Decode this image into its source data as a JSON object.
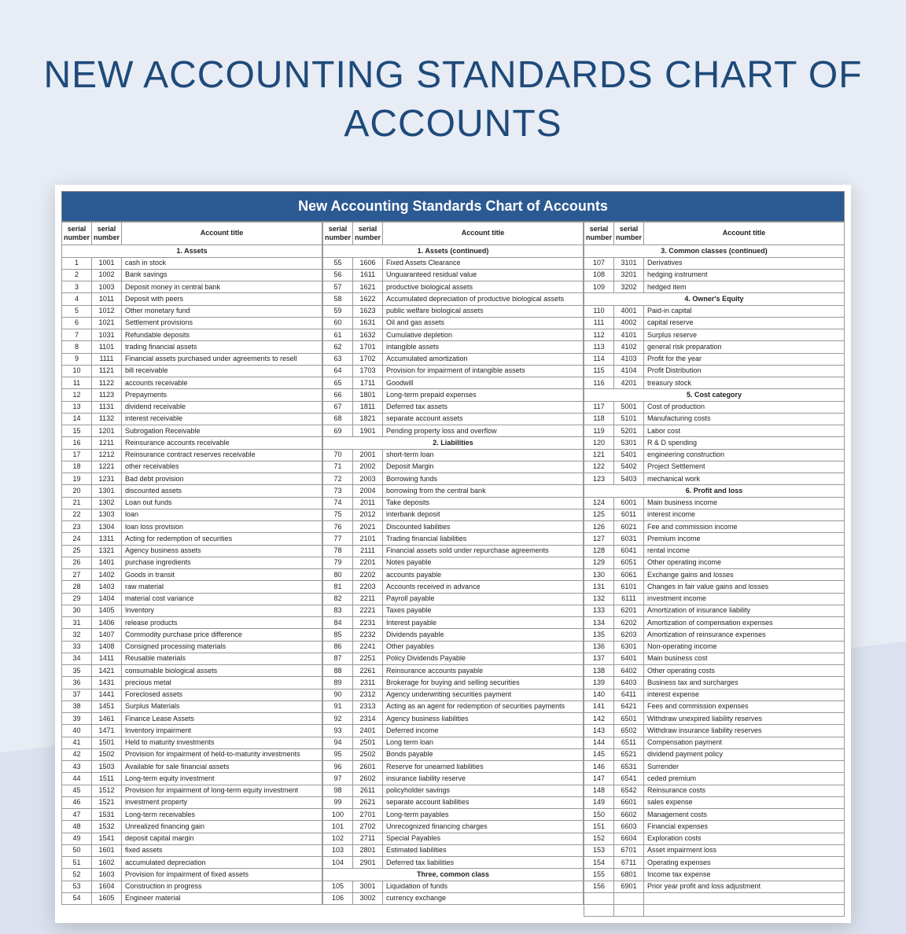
{
  "page_title": "NEW ACCOUNTING STANDARDS CHART OF ACCOUNTS",
  "sheet_title": "New Accounting Standards Chart of Accounts",
  "colors": {
    "title": "#1e4a7a",
    "header_bg": "#2b5a93",
    "header_text": "#ffffff",
    "border": "#999999",
    "page_bg_top": "#e8ecf5",
    "page_bg_bottom": "#dbe1ee"
  },
  "headers": [
    "serial number",
    "serial number",
    "Account title"
  ],
  "columns": [
    {
      "rows": [
        {
          "section": "1. Assets"
        },
        {
          "sn": 1,
          "num": 1001,
          "title": "cash in stock"
        },
        {
          "sn": 2,
          "num": 1002,
          "title": "Bank savings"
        },
        {
          "sn": 3,
          "num": 1003,
          "title": "Deposit money in central bank"
        },
        {
          "sn": 4,
          "num": 1011,
          "title": "Deposit with peers"
        },
        {
          "sn": 5,
          "num": 1012,
          "title": "Other monetary fund"
        },
        {
          "sn": 6,
          "num": 1021,
          "title": "Settlement provisions"
        },
        {
          "sn": 7,
          "num": 1031,
          "title": "Refundable deposits"
        },
        {
          "sn": 8,
          "num": 1101,
          "title": "trading financial assets"
        },
        {
          "sn": 9,
          "num": 1111,
          "title": "Financial assets purchased under agreements to resell"
        },
        {
          "sn": 10,
          "num": 1121,
          "title": "bill receivable"
        },
        {
          "sn": 11,
          "num": 1122,
          "title": "accounts receivable"
        },
        {
          "sn": 12,
          "num": 1123,
          "title": "Prepayments"
        },
        {
          "sn": 13,
          "num": 1131,
          "title": "dividend receivable"
        },
        {
          "sn": 14,
          "num": 1132,
          "title": "interest receivable"
        },
        {
          "sn": 15,
          "num": 1201,
          "title": "Subrogation Receivable"
        },
        {
          "sn": 16,
          "num": 1211,
          "title": "Reinsurance accounts receivable"
        },
        {
          "sn": 17,
          "num": 1212,
          "title": "Reinsurance contract reserves receivable"
        },
        {
          "sn": 18,
          "num": 1221,
          "title": "other receivables"
        },
        {
          "sn": 19,
          "num": 1231,
          "title": "Bad debt provision"
        },
        {
          "sn": 20,
          "num": 1301,
          "title": "discounted assets"
        },
        {
          "sn": 21,
          "num": 1302,
          "title": "Loan out funds"
        },
        {
          "sn": 22,
          "num": 1303,
          "title": "loan"
        },
        {
          "sn": 23,
          "num": 1304,
          "title": "loan loss provision"
        },
        {
          "sn": 24,
          "num": 1311,
          "title": "Acting for redemption of securities"
        },
        {
          "sn": 25,
          "num": 1321,
          "title": "Agency business assets"
        },
        {
          "sn": 26,
          "num": 1401,
          "title": "purchase ingredients"
        },
        {
          "sn": 27,
          "num": 1402,
          "title": "Goods in transit"
        },
        {
          "sn": 28,
          "num": 1403,
          "title": "raw material"
        },
        {
          "sn": 29,
          "num": 1404,
          "title": "material cost variance"
        },
        {
          "sn": 30,
          "num": 1405,
          "title": "Inventory"
        },
        {
          "sn": 31,
          "num": 1406,
          "title": "release products"
        },
        {
          "sn": 32,
          "num": 1407,
          "title": "Commodity purchase price difference"
        },
        {
          "sn": 33,
          "num": 1408,
          "title": "Consigned processing materials"
        },
        {
          "sn": 34,
          "num": 1411,
          "title": "Reusable materials"
        },
        {
          "sn": 35,
          "num": 1421,
          "title": "consumable biological assets"
        },
        {
          "sn": 36,
          "num": 1431,
          "title": "precious metal"
        },
        {
          "sn": 37,
          "num": 1441,
          "title": "Foreclosed assets"
        },
        {
          "sn": 38,
          "num": 1451,
          "title": "Surplus Materials"
        },
        {
          "sn": 39,
          "num": 1461,
          "title": "Finance Lease Assets"
        },
        {
          "sn": 40,
          "num": 1471,
          "title": "Inventory impairment"
        },
        {
          "sn": 41,
          "num": 1501,
          "title": "Held to maturity investments"
        },
        {
          "sn": 42,
          "num": 1502,
          "title": "Provision for impairment of held-to-maturity investments"
        },
        {
          "sn": 43,
          "num": 1503,
          "title": "Available for sale financial assets"
        },
        {
          "sn": 44,
          "num": 1511,
          "title": "Long-term equity investment"
        },
        {
          "sn": 45,
          "num": 1512,
          "title": "Provision for impairment of long-term equity investment"
        },
        {
          "sn": 46,
          "num": 1521,
          "title": "investment property"
        },
        {
          "sn": 47,
          "num": 1531,
          "title": "Long-term receivables"
        },
        {
          "sn": 48,
          "num": 1532,
          "title": "Unrealized financing gain"
        },
        {
          "sn": 49,
          "num": 1541,
          "title": "deposit capital margin"
        },
        {
          "sn": 50,
          "num": 1601,
          "title": "fixed assets"
        },
        {
          "sn": 51,
          "num": 1602,
          "title": "accumulated depreciation"
        },
        {
          "sn": 52,
          "num": 1603,
          "title": "Provision for impairment of fixed assets"
        },
        {
          "sn": 53,
          "num": 1604,
          "title": "Construction in progress"
        },
        {
          "sn": 54,
          "num": 1605,
          "title": "Engineer material"
        }
      ]
    },
    {
      "rows": [
        {
          "section": "1. Assets (continued)"
        },
        {
          "sn": 55,
          "num": 1606,
          "title": "Fixed Assets Clearance"
        },
        {
          "sn": 56,
          "num": 1611,
          "title": "Unguaranteed residual value"
        },
        {
          "sn": 57,
          "num": 1621,
          "title": "productive biological assets"
        },
        {
          "sn": 58,
          "num": 1622,
          "title": "Accumulated depreciation of productive biological assets"
        },
        {
          "sn": 59,
          "num": 1623,
          "title": "public welfare biological assets"
        },
        {
          "sn": 60,
          "num": 1631,
          "title": "Oil and gas assets"
        },
        {
          "sn": 61,
          "num": 1632,
          "title": "Cumulative depletion"
        },
        {
          "sn": 62,
          "num": 1701,
          "title": "intangible assets"
        },
        {
          "sn": 63,
          "num": 1702,
          "title": "Accumulated amortization"
        },
        {
          "sn": 64,
          "num": 1703,
          "title": "Provision for impairment of intangible assets"
        },
        {
          "sn": 65,
          "num": 1711,
          "title": "Goodwill"
        },
        {
          "sn": 66,
          "num": 1801,
          "title": "Long-term prepaid expenses"
        },
        {
          "sn": 67,
          "num": 1811,
          "title": "Deferred tax assets"
        },
        {
          "sn": 68,
          "num": 1821,
          "title": "separate account assets"
        },
        {
          "sn": 69,
          "num": 1901,
          "title": "Pending property loss and overflow"
        },
        {
          "section": "2. Liabilities"
        },
        {
          "sn": 70,
          "num": 2001,
          "title": "short-term loan"
        },
        {
          "sn": 71,
          "num": 2002,
          "title": "Deposit Margin"
        },
        {
          "sn": 72,
          "num": 2003,
          "title": "Borrowing funds"
        },
        {
          "sn": 73,
          "num": 2004,
          "title": "borrowing from the central bank"
        },
        {
          "sn": 74,
          "num": 2011,
          "title": "Take deposits"
        },
        {
          "sn": 75,
          "num": 2012,
          "title": "interbank deposit"
        },
        {
          "sn": 76,
          "num": 2021,
          "title": "Discounted liabilities"
        },
        {
          "sn": 77,
          "num": 2101,
          "title": "Trading financial liabilities"
        },
        {
          "sn": 78,
          "num": 2111,
          "title": "Financial assets sold under repurchase agreements"
        },
        {
          "sn": 79,
          "num": 2201,
          "title": "Notes payable"
        },
        {
          "sn": 80,
          "num": 2202,
          "title": "accounts payable"
        },
        {
          "sn": 81,
          "num": 2203,
          "title": "Accounts received in advance"
        },
        {
          "sn": 82,
          "num": 2211,
          "title": "Payroll payable"
        },
        {
          "sn": 83,
          "num": 2221,
          "title": "Taxes payable"
        },
        {
          "sn": 84,
          "num": 2231,
          "title": "Interest payable"
        },
        {
          "sn": 85,
          "num": 2232,
          "title": "Dividends payable"
        },
        {
          "sn": 86,
          "num": 2241,
          "title": "Other payables"
        },
        {
          "sn": 87,
          "num": 2251,
          "title": "Policy Dividends Payable"
        },
        {
          "sn": 88,
          "num": 2261,
          "title": "Reinsurance accounts payable"
        },
        {
          "sn": 89,
          "num": 2311,
          "title": "Brokerage for buying and selling securities"
        },
        {
          "sn": 90,
          "num": 2312,
          "title": "Agency underwriting securities payment"
        },
        {
          "sn": 91,
          "num": 2313,
          "title": "Acting as an agent for redemption of securities payments"
        },
        {
          "sn": 92,
          "num": 2314,
          "title": "Agency business liabilities"
        },
        {
          "sn": 93,
          "num": 2401,
          "title": "Deferred income"
        },
        {
          "sn": 94,
          "num": 2501,
          "title": "Long term loan"
        },
        {
          "sn": 95,
          "num": 2502,
          "title": "Bonds payable"
        },
        {
          "sn": 96,
          "num": 2601,
          "title": "Reserve for unearned liabilities"
        },
        {
          "sn": 97,
          "num": 2602,
          "title": "insurance liability reserve"
        },
        {
          "sn": 98,
          "num": 2611,
          "title": "policyholder savings"
        },
        {
          "sn": 99,
          "num": 2621,
          "title": "separate account liabilities"
        },
        {
          "sn": 100,
          "num": 2701,
          "title": "Long-term payables"
        },
        {
          "sn": 101,
          "num": 2702,
          "title": "Unrecognized financing charges"
        },
        {
          "sn": 102,
          "num": 2711,
          "title": "Special Payables"
        },
        {
          "sn": 103,
          "num": 2801,
          "title": "Estimated liabilities"
        },
        {
          "sn": 104,
          "num": 2901,
          "title": "Deferred tax liabilities"
        },
        {
          "section": "Three, common class"
        },
        {
          "sn": 105,
          "num": 3001,
          "title": "Liquidation of funds"
        },
        {
          "sn": 106,
          "num": 3002,
          "title": "currency exchange"
        }
      ]
    },
    {
      "rows": [
        {
          "section": "3. Common classes (continued)"
        },
        {
          "sn": 107,
          "num": 3101,
          "title": "Derivatives"
        },
        {
          "sn": 108,
          "num": 3201,
          "title": "hedging instrument"
        },
        {
          "sn": 109,
          "num": 3202,
          "title": "hedged item"
        },
        {
          "section": "4. Owner's Equity"
        },
        {
          "sn": 110,
          "num": 4001,
          "title": "Paid-in capital"
        },
        {
          "sn": 111,
          "num": 4002,
          "title": "capital reserve"
        },
        {
          "sn": 112,
          "num": 4101,
          "title": "Surplus reserve"
        },
        {
          "sn": 113,
          "num": 4102,
          "title": "general risk preparation"
        },
        {
          "sn": 114,
          "num": 4103,
          "title": "Profit for the year"
        },
        {
          "sn": 115,
          "num": 4104,
          "title": "Profit Distribution"
        },
        {
          "sn": 116,
          "num": 4201,
          "title": "treasury stock"
        },
        {
          "section": "5. Cost category"
        },
        {
          "sn": 117,
          "num": 5001,
          "title": "Cost of production"
        },
        {
          "sn": 118,
          "num": 5101,
          "title": "Manufacturing costs"
        },
        {
          "sn": 119,
          "num": 5201,
          "title": "Labor cost"
        },
        {
          "sn": 120,
          "num": 5301,
          "title": "R & D spending"
        },
        {
          "sn": 121,
          "num": 5401,
          "title": "engineering construction"
        },
        {
          "sn": 122,
          "num": 5402,
          "title": "Project Settlement"
        },
        {
          "sn": 123,
          "num": 5403,
          "title": "mechanical work"
        },
        {
          "section": "6. Profit and loss"
        },
        {
          "sn": 124,
          "num": 6001,
          "title": "Main business income"
        },
        {
          "sn": 125,
          "num": 6011,
          "title": "interest income"
        },
        {
          "sn": 126,
          "num": 6021,
          "title": "Fee and commission income"
        },
        {
          "sn": 127,
          "num": 6031,
          "title": "Premium income"
        },
        {
          "sn": 128,
          "num": 6041,
          "title": "rental income"
        },
        {
          "sn": 129,
          "num": 6051,
          "title": "Other operating income"
        },
        {
          "sn": 130,
          "num": 6061,
          "title": "Exchange gains and losses"
        },
        {
          "sn": 131,
          "num": 6101,
          "title": "Changes in fair value gains and losses"
        },
        {
          "sn": 132,
          "num": 6111,
          "title": "investment income"
        },
        {
          "sn": 133,
          "num": 6201,
          "title": "Amortization of insurance liability"
        },
        {
          "sn": 134,
          "num": 6202,
          "title": "Amortization of compensation expenses"
        },
        {
          "sn": 135,
          "num": 6203,
          "title": "Amortization of reinsurance expenses"
        },
        {
          "sn": 136,
          "num": 6301,
          "title": "Non-operating income"
        },
        {
          "sn": 137,
          "num": 6401,
          "title": "Main business cost"
        },
        {
          "sn": 138,
          "num": 6402,
          "title": "Other operating costs"
        },
        {
          "sn": 139,
          "num": 6403,
          "title": "Business tax and surcharges"
        },
        {
          "sn": 140,
          "num": 6411,
          "title": "interest expense"
        },
        {
          "sn": 141,
          "num": 6421,
          "title": "Fees and commission expenses"
        },
        {
          "sn": 142,
          "num": 6501,
          "title": "Withdraw unexpired liability reserves"
        },
        {
          "sn": 143,
          "num": 6502,
          "title": "Withdraw insurance liability reserves"
        },
        {
          "sn": 144,
          "num": 6511,
          "title": "Compensation payment"
        },
        {
          "sn": 145,
          "num": 6521,
          "title": "dividend payment policy"
        },
        {
          "sn": 146,
          "num": 6531,
          "title": "Surrender"
        },
        {
          "sn": 147,
          "num": 6541,
          "title": "ceded premium"
        },
        {
          "sn": 148,
          "num": 6542,
          "title": "Reinsurance costs"
        },
        {
          "sn": 149,
          "num": 6601,
          "title": "sales expense"
        },
        {
          "sn": 150,
          "num": 6602,
          "title": "Management costs"
        },
        {
          "sn": 151,
          "num": 6603,
          "title": "Financial expenses"
        },
        {
          "sn": 152,
          "num": 6604,
          "title": "Exploration costs"
        },
        {
          "sn": 153,
          "num": 6701,
          "title": "Asset impairment loss"
        },
        {
          "sn": 154,
          "num": 6711,
          "title": "Operating expenses"
        },
        {
          "sn": 155,
          "num": 6801,
          "title": "Income tax expense"
        },
        {
          "sn": 156,
          "num": 6901,
          "title": "Prior year profit and loss adjustment"
        },
        {
          "blank": true
        },
        {
          "blank": true
        }
      ]
    }
  ]
}
